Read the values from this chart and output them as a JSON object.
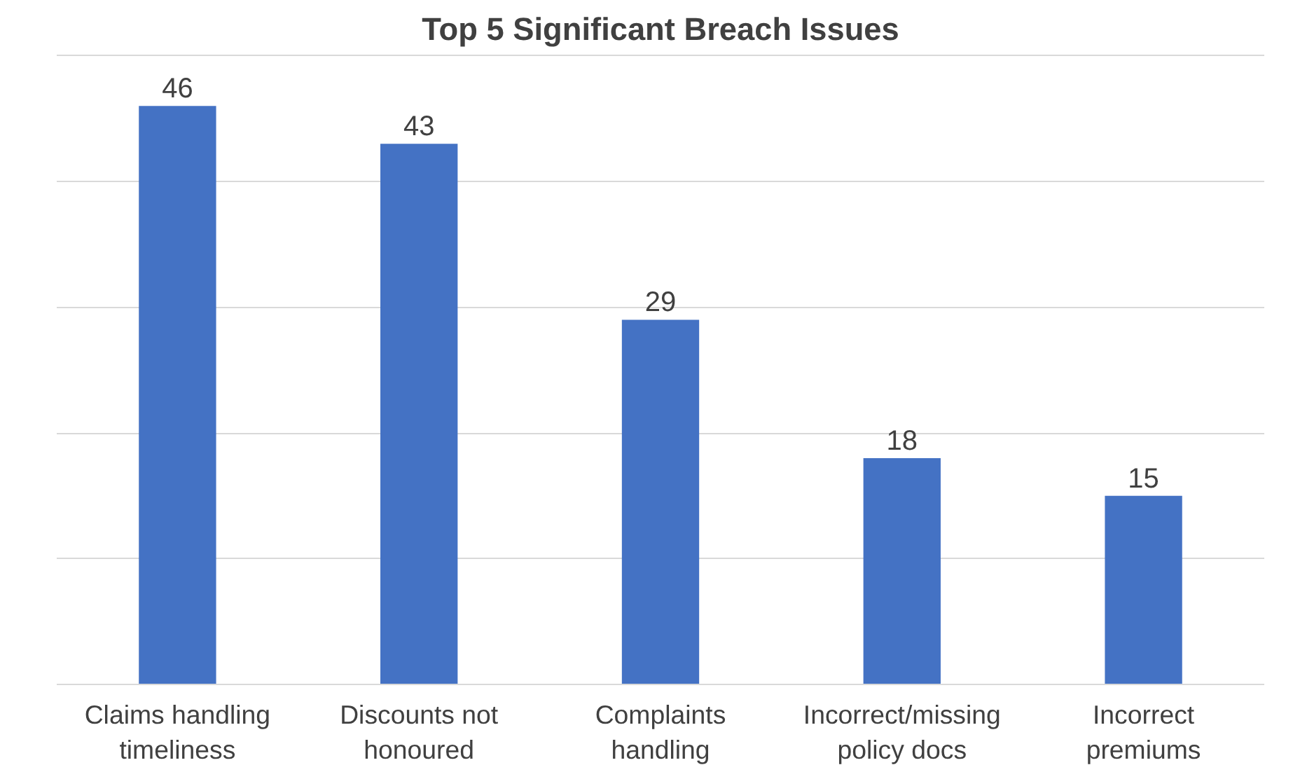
{
  "chart_data": {
    "type": "bar",
    "title": "Top 5 Significant Breach Issues",
    "categories": [
      "Claims handling timeliness",
      "Discounts not honoured",
      "Complaints handling",
      "Incorrect/missing policy docs",
      "Incorrect premiums"
    ],
    "values": [
      46,
      43,
      29,
      18,
      15
    ],
    "color": "#4472c4",
    "grid": "y",
    "tick_labels": "x",
    "data_labels": true
  }
}
